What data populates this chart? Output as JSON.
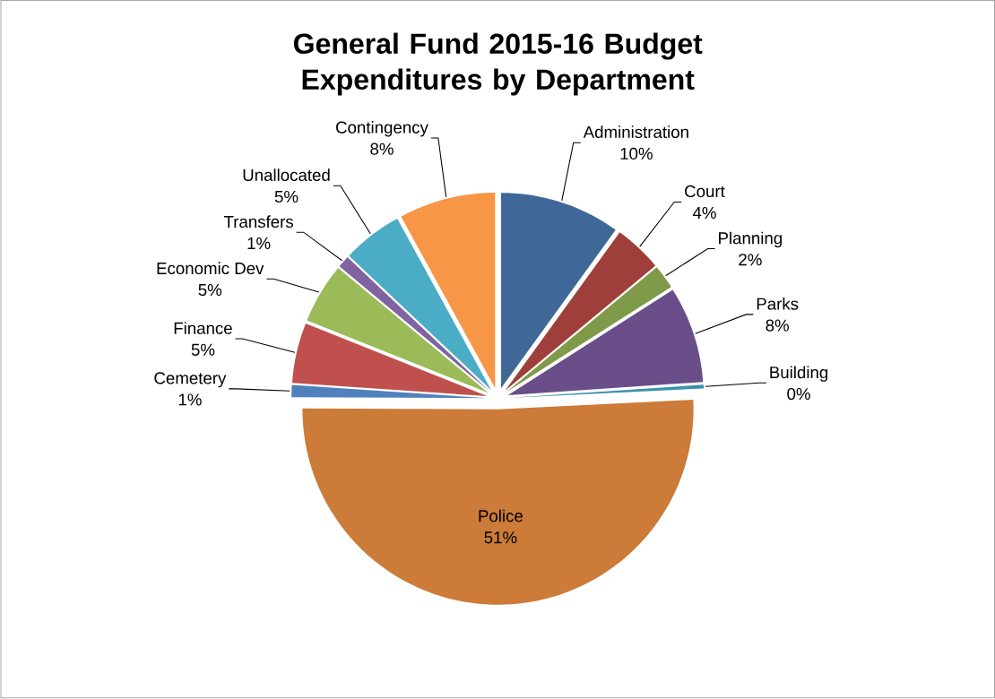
{
  "chart_data": {
    "type": "pie",
    "title": "General Fund 2015-16 Budget\nExpenditures by Department",
    "categories": [
      "Administration",
      "Court",
      "Planning",
      "Parks",
      "Building",
      "Police",
      "Cemetery",
      "Finance",
      "Economic Dev",
      "Transfers",
      "Unallocated",
      "Contingency"
    ],
    "values": [
      10,
      4,
      2,
      8,
      0.3,
      51,
      1,
      5,
      5,
      1,
      5,
      8
    ],
    "value_labels": [
      "10%",
      "4%",
      "2%",
      "8%",
      "0%",
      "51%",
      "1%",
      "5%",
      "5%",
      "1%",
      "5%",
      "8%"
    ],
    "colors": [
      "#3f6899",
      "#9e3f3c",
      "#7f9a48",
      "#6a4e8a",
      "#3a93ad",
      "#cc7b38",
      "#4f81bd",
      "#c0504d",
      "#9bbb59",
      "#8064a2",
      "#4bacc6",
      "#f79646"
    ]
  }
}
